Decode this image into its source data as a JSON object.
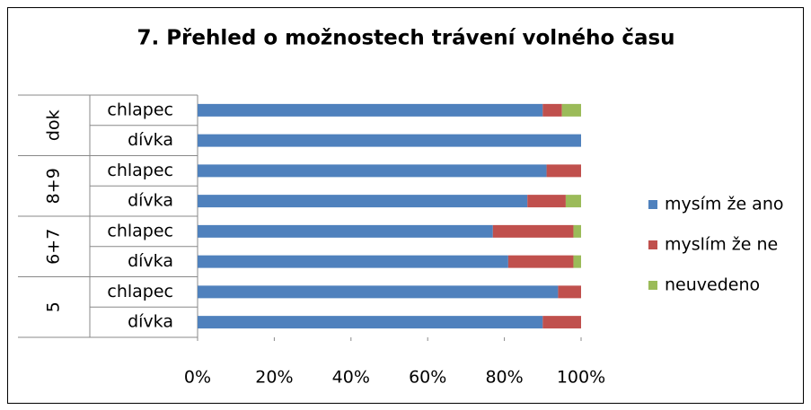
{
  "chart_data": {
    "type": "bar_stacked_horizontal",
    "title": "7. Přehled o možnostech trávení volného času",
    "groups": [
      "dok",
      "8+9",
      "6+7",
      "5"
    ],
    "categories": [
      "chlapec",
      "dívka",
      "chlapec",
      "dívka",
      "chlapec",
      "dívka",
      "chlapec",
      "dívka"
    ],
    "series": [
      {
        "name": "mysím že ano",
        "color": "#4f81bd",
        "values": [
          90,
          100,
          91,
          86,
          77,
          81,
          94,
          90
        ]
      },
      {
        "name": "myslím že ne",
        "color": "#c0504d",
        "values": [
          5,
          0,
          9,
          10,
          21,
          17,
          6,
          10
        ]
      },
      {
        "name": "neuvedeno",
        "color": "#9bbb59",
        "values": [
          5,
          0,
          0,
          4,
          2,
          2,
          0,
          0
        ]
      }
    ],
    "xlim": [
      0,
      100
    ],
    "xticks": [
      {
        "value": 0,
        "label": "0%"
      },
      {
        "value": 20,
        "label": "20%"
      },
      {
        "value": 40,
        "label": "40%"
      },
      {
        "value": 60,
        "label": "60%"
      },
      {
        "value": 80,
        "label": "80%"
      },
      {
        "value": 100,
        "label": "100%"
      }
    ],
    "legend": "right"
  }
}
